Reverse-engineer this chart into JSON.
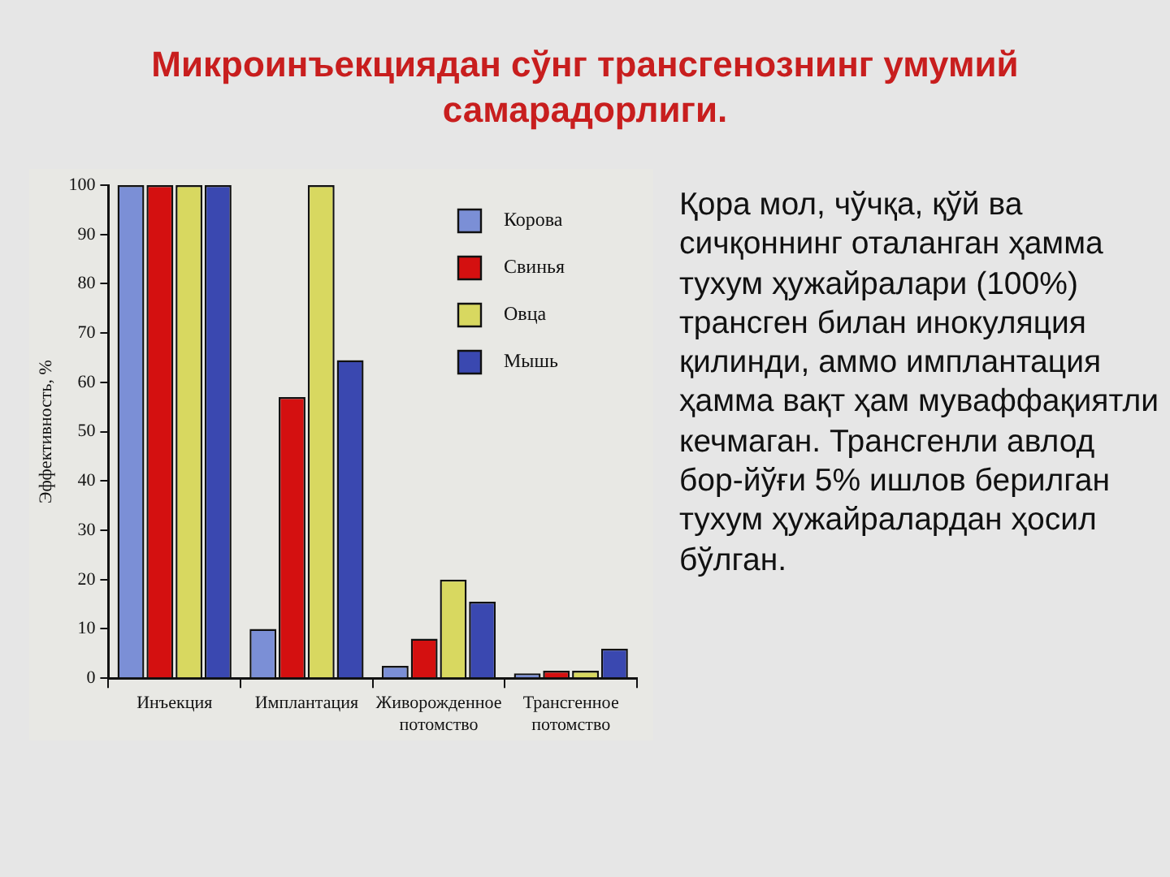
{
  "chart_data": {
    "type": "bar",
    "title": "Микроинъекциядан сўнг трансгенознинг умумий самарадорлиги.",
    "ylabel": "Эффективность, %",
    "categories": [
      "Инъекция",
      "Имплантация",
      "Живорожденное потомство",
      "Трансгенное потомство"
    ],
    "series": [
      {
        "name": "Корова",
        "color": "#7b8fd6",
        "values": [
          100,
          10,
          2.5,
          1
        ]
      },
      {
        "name": "Свинья",
        "color": "#d41010",
        "values": [
          100,
          57,
          8,
          1.5
        ]
      },
      {
        "name": "Овца",
        "color": "#d8d860",
        "values": [
          100,
          100,
          20,
          1.5
        ]
      },
      {
        "name": "Мышь",
        "color": "#3a48b0",
        "values": [
          100,
          64.5,
          15.5,
          6
        ]
      }
    ],
    "ylim": [
      0,
      100
    ],
    "yticks": [
      0,
      10,
      20,
      30,
      40,
      50,
      60,
      70,
      80,
      90,
      100
    ],
    "grid": false,
    "legend": "top right",
    "annotations": [
      "Қора мол, чўчқа, қўй ва сичқоннинг оталанган ҳамма тухум ҳужайралари (100%) трансген билан инокуляция қилинди, аммо имплантация ҳамма вақт ҳам муваффақиятли кечмаган. Трансгенли авлод бор-йўғи 5% ишлов берилган тухум ҳужайралардан ҳосил бўлган."
    ]
  }
}
